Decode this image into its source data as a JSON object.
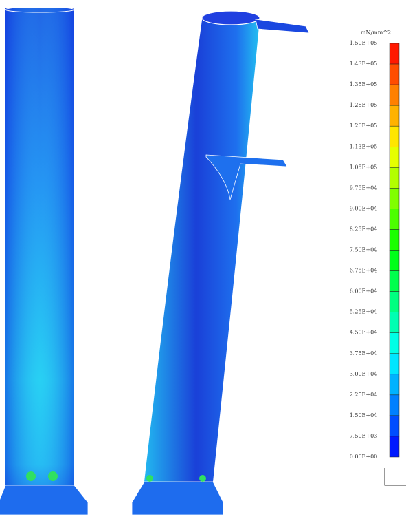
{
  "legend": {
    "unit": "mN/mm^2",
    "labels": [
      "1.50E+05",
      "1.43E+05",
      "1.35E+05",
      "1.28E+05",
      "1.20E+05",
      "1.13E+05",
      "1.05E+05",
      "9.75E+04",
      "9.00E+04",
      "8.25E+04",
      "7.50E+04",
      "6.75E+04",
      "6.00E+04",
      "5.25E+04",
      "4.50E+04",
      "3.75E+04",
      "3.00E+04",
      "2.25E+04",
      "1.50E+04",
      "7.50E+03",
      "0.00E+00"
    ]
  }
}
